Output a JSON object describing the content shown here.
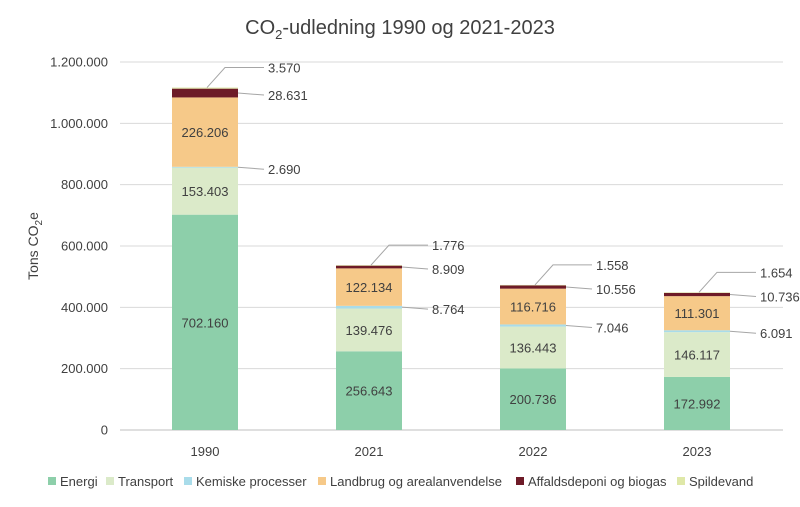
{
  "chart_data": {
    "type": "bar",
    "stacked": true,
    "title_main": "CO",
    "title_sub": "2",
    "title_rest": "-udledning 1990 og 2021-2023",
    "ylabel_main": "Tons CO",
    "ylabel_sub": "2",
    "ylabel_rest": "e",
    "categories": [
      "1990",
      "2021",
      "2022",
      "2023"
    ],
    "ylim": [
      0,
      1200000
    ],
    "yticks": [
      {
        "value": 0,
        "label": "0"
      },
      {
        "value": 200000,
        "label": "200.000"
      },
      {
        "value": 400000,
        "label": "400.000"
      },
      {
        "value": 600000,
        "label": "600.000"
      },
      {
        "value": 800000,
        "label": "800.000"
      },
      {
        "value": 1000000,
        "label": "1.000.000"
      },
      {
        "value": 1200000,
        "label": "1.200.000"
      }
    ],
    "grid": true,
    "legend_position": "bottom",
    "series": [
      {
        "name": "Energi",
        "color": "#8dcfaa",
        "values": [
          702160,
          256643,
          200736,
          172992
        ],
        "labels": [
          "702.160",
          "256.643",
          "200.736",
          "172.992"
        ]
      },
      {
        "name": "Transport",
        "color": "#dbeac9",
        "values": [
          153403,
          139476,
          136443,
          146117
        ],
        "labels": [
          "153.403",
          "139.476",
          "136.443",
          "146.117"
        ]
      },
      {
        "name": "Kemiske processer",
        "color": "#a9dcea",
        "values": [
          2690,
          8764,
          7046,
          6091
        ],
        "labels": [
          "2.690",
          "8.764",
          "7.046",
          "6.091"
        ]
      },
      {
        "name": "Landbrug og arealanvendelse",
        "color": "#f6c989",
        "values": [
          226206,
          122134,
          116716,
          111301
        ],
        "labels": [
          "226.206",
          "122.134",
          "116.716",
          "111.301"
        ]
      },
      {
        "name": "Affaldsdeponi og biogas",
        "color": "#6e1b28",
        "values": [
          28631,
          8909,
          10556,
          10736
        ],
        "labels": [
          "28.631",
          "8.909",
          "10.556",
          "10.736"
        ]
      },
      {
        "name": "Spildevand",
        "color": "#dfe8a8",
        "values": [
          3570,
          1776,
          1558,
          1654
        ],
        "labels": [
          "3.570",
          "1.776",
          "1.558",
          "1.654"
        ]
      }
    ]
  }
}
